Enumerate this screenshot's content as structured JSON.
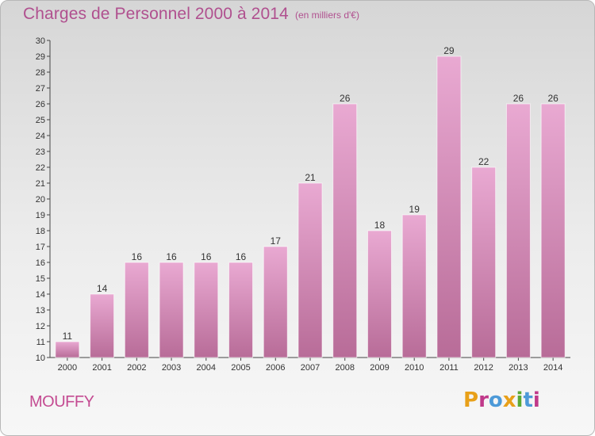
{
  "header": {
    "title": "Charges de Personnel 2000 à 2014",
    "subtitle": "(en milliers d'€)"
  },
  "footer": {
    "place": "MOUFFY",
    "logo_text": "Proxiti"
  },
  "colors": {
    "title": "#b0508f",
    "bar_top": "#e9a9d2",
    "bar_bottom": "#b86c98",
    "logo_letters": [
      "#e8a019",
      "#c0398a",
      "#4d9ad8",
      "#e8a019",
      "#5aa935",
      "#4d9ad8",
      "#c0398a"
    ]
  },
  "chart_data": {
    "type": "bar",
    "title": "Charges de Personnel 2000 à 2014",
    "subtitle": "(en milliers d'€)",
    "xlabel": "",
    "ylabel": "",
    "categories": [
      "2000",
      "2001",
      "2002",
      "2003",
      "2004",
      "2005",
      "2006",
      "2007",
      "2008",
      "2009",
      "2010",
      "2011",
      "2012",
      "2013",
      "2014"
    ],
    "values": [
      11,
      14,
      16,
      16,
      16,
      16,
      17,
      21,
      26,
      18,
      19,
      29,
      22,
      26,
      26
    ],
    "ylim": [
      10,
      30
    ],
    "yticks": [
      10,
      11,
      12,
      13,
      14,
      15,
      16,
      17,
      18,
      19,
      20,
      21,
      22,
      23,
      24,
      25,
      26,
      27,
      28,
      29,
      30
    ],
    "grid": false,
    "legend": "none"
  }
}
